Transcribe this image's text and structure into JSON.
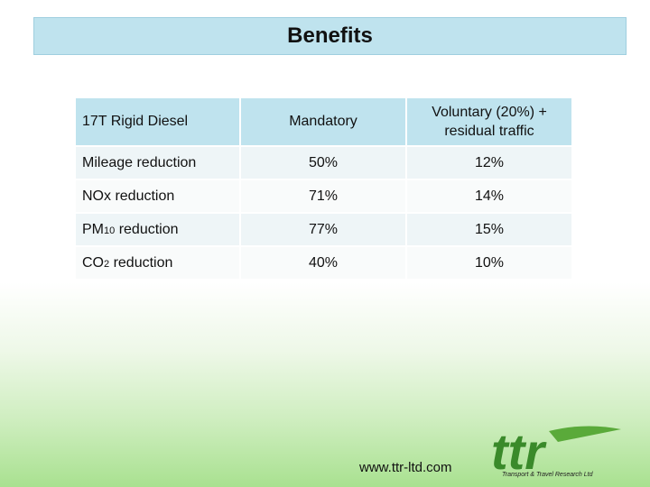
{
  "title": "Benefits",
  "table": {
    "headers": [
      "17T Rigid Diesel",
      "Mandatory",
      "Voluntary (20%) +",
      "residual traffic"
    ],
    "rows": [
      {
        "label": "Mileage  reduction",
        "mandatory": "50%",
        "voluntary": "12%"
      },
      {
        "label": "NOx reduction",
        "mandatory": "71%",
        "voluntary": "14%"
      },
      {
        "label_main": "PM",
        "label_sub": "10",
        "label_rest": " reduction",
        "mandatory": "77%",
        "voluntary": "15%"
      },
      {
        "label_main": "CO",
        "label_sub": "2",
        "label_rest": " reduction",
        "mandatory": "40%",
        "voluntary": "10%"
      }
    ]
  },
  "footer": {
    "url": "www.ttr-ltd.com",
    "logo_text": "ttr",
    "logo_tagline": "Transport & Travel Research Ltd"
  },
  "colors": {
    "header_fill": "#bfe3ee",
    "logo_green": "#3a8a2a"
  }
}
